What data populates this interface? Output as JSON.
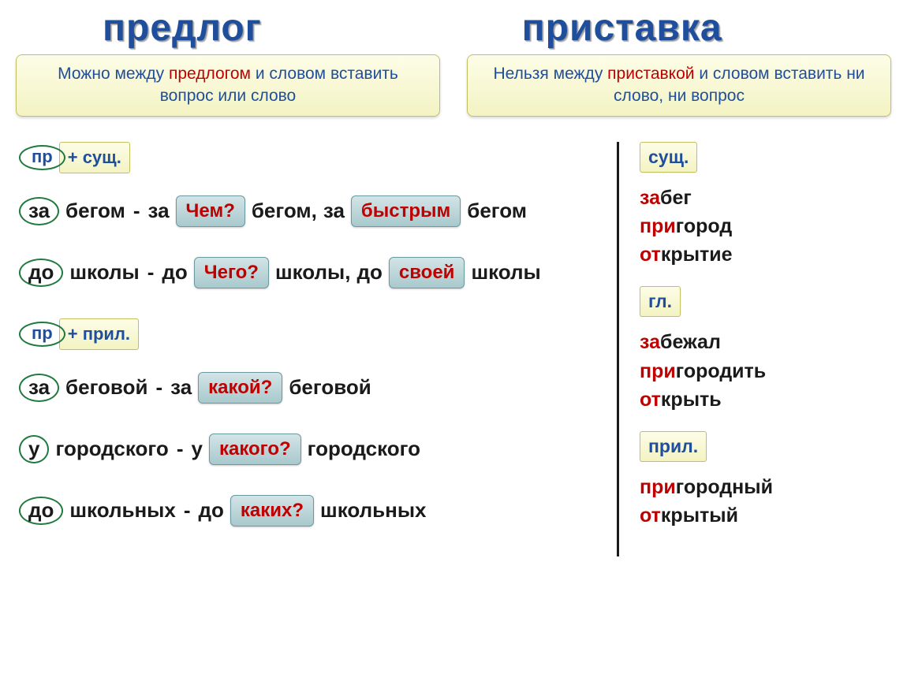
{
  "header": {
    "left_title": "предлог",
    "right_title": "приставка"
  },
  "rules": {
    "left": {
      "word_mozhno": "Можно",
      "t1": " между ",
      "word_predlog": "предлогом",
      "t2": "  и словом вставить вопрос или слово"
    },
    "right": {
      "word_nelzya": "Нельзя",
      "t1": " между ",
      "word_pristavka": "приставкой",
      "t2": " и словом вставить ни слово, ни вопрос"
    }
  },
  "left_section1": {
    "marker_oval": "пр",
    "marker_tag": "+ сущ.",
    "lines": [
      {
        "prep1": "за",
        "word1": "бегом",
        "dash": "-",
        "prep2": "за",
        "ask1": "Чем?",
        "word2": "бегом,",
        "prep3": "за",
        "ask2": "быстрым",
        "word3": "бегом"
      },
      {
        "prep1": "до",
        "word1": "школы",
        "dash": "-",
        "prep2": "до",
        "ask1": "Чего?",
        "word2": "школы,",
        "prep3": "до",
        "ask2": "своей",
        "word3": "школы"
      }
    ]
  },
  "left_section2": {
    "marker_oval": "пр",
    "marker_tag": "+ прил.",
    "lines": [
      {
        "prep1": "за",
        "word1": "беговой",
        "dash": "-",
        "prep2": "за",
        "ask1": "какой?",
        "word2": "беговой"
      },
      {
        "prep1": "у",
        "word1": "городского",
        "dash": "-",
        "prep2": "у",
        "ask1": "какого?",
        "word2": "городского"
      },
      {
        "prep1": "до",
        "word1": "школьных",
        "dash": "-",
        "prep2": "до",
        "ask1": "каких?",
        "word2": "школьных"
      }
    ]
  },
  "right_sections": [
    {
      "tag": "сущ.",
      "words": [
        {
          "pref": "за",
          "stem": "бег"
        },
        {
          "pref": "при",
          "stem": "город"
        },
        {
          "pref": "от",
          "stem": "крытие"
        }
      ]
    },
    {
      "tag": "гл.",
      "words": [
        {
          "pref": "за",
          "stem": "бежал"
        },
        {
          "pref": "при",
          "stem": "городить"
        },
        {
          "pref": "от",
          "stem": "крыть"
        }
      ]
    },
    {
      "tag": "прил.",
      "words": [
        {
          "pref": "при",
          "stem": "городный"
        },
        {
          "pref": "от",
          "stem": "крытый"
        }
      ]
    }
  ],
  "colors": {
    "title_blue": "#1f4e9c",
    "accent_red": "#c00000",
    "oval_green": "#1f7a3e",
    "yellow_bg_top": "#fdfde8",
    "yellow_bg_bottom": "#f3f3c3",
    "ask_bg_top": "#d3e4e6",
    "ask_bg_bottom": "#a8c9cd",
    "text_black": "#1a1a1a"
  }
}
